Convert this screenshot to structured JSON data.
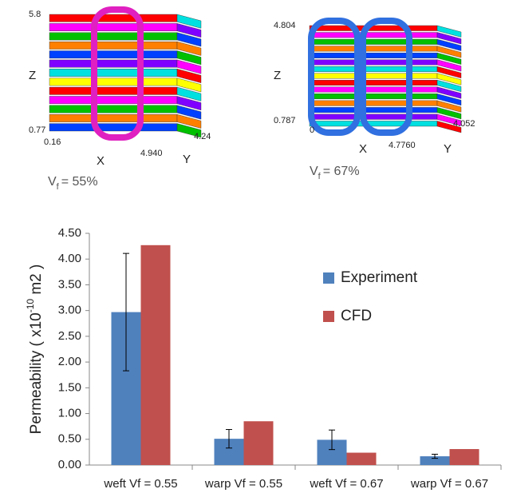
{
  "panels": [
    {
      "zmax": "5.8",
      "z": "Z",
      "zmin": "0.77",
      "xmin": "0.16",
      "x": "X",
      "xmax": "4.940",
      "ymax": "4.24",
      "y": "Y",
      "vf": {
        "symbol": "V",
        "subscript": "f",
        "text": "= 55%"
      }
    },
    {
      "zmax": "4.804",
      "z": "Z",
      "zmin": "0.787",
      "xmin": "0",
      "x": "X",
      "xmax": "4.7760",
      "ymax": "4.052",
      "y": "Y",
      "vf": {
        "symbol": "V",
        "subscript": "f",
        "text": "= 67%"
      }
    }
  ],
  "chart_data": {
    "type": "bar",
    "ylabel": [
      "Permeability ( x10",
      "-10",
      " m2 )"
    ],
    "categories": [
      "weft Vf = 0.55",
      "warp Vf = 0.55",
      "weft Vf = 0.67",
      "warp Vf = 0.67"
    ],
    "series": [
      {
        "name": "Experiment",
        "color": "#4f81bd",
        "values": [
          2.97,
          0.51,
          0.49,
          0.17
        ],
        "errors": [
          1.14,
          0.18,
          0.19,
          0.04
        ]
      },
      {
        "name": "CFD",
        "color": "#c0504d",
        "values": [
          4.27,
          0.85,
          0.24,
          0.31
        ]
      }
    ],
    "ylim": [
      0,
      4.5
    ],
    "yticks": [
      {
        "value": 0,
        "label": "0.00"
      },
      {
        "value": 0.5,
        "label": "0.50"
      },
      {
        "value": 1,
        "label": "1.00"
      },
      {
        "value": 1.5,
        "label": "1.50"
      },
      {
        "value": 2,
        "label": "2.00"
      },
      {
        "value": 2.5,
        "label": "2.50"
      },
      {
        "value": 3,
        "label": "3.00"
      },
      {
        "value": 3.5,
        "label": "3.50"
      },
      {
        "value": 4,
        "label": "4.00"
      },
      {
        "value": 4.5,
        "label": "4.50"
      }
    ],
    "legend": "right"
  }
}
